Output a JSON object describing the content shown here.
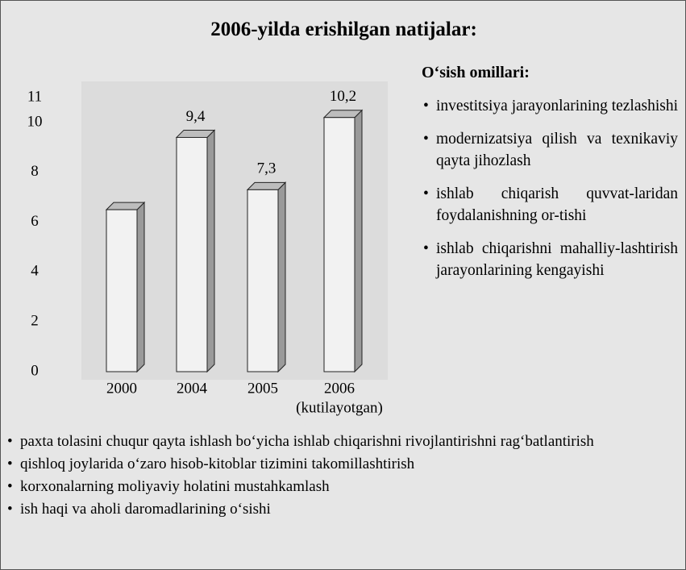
{
  "chart_data": {
    "type": "bar3d",
    "title": "2006-yilda erishilgan natijalar:",
    "categories": [
      "2000",
      "2004",
      "2005",
      "2006"
    ],
    "annotation": "(kutilayotgan)",
    "values": [
      6.5,
      9.4,
      7.3,
      10.2
    ],
    "value_labels": [
      null,
      "9,4",
      "7,3",
      "10,2"
    ],
    "color": "#f2f2f2",
    "ylim": [
      0,
      11
    ],
    "yticks": [
      0,
      2,
      4,
      6,
      8,
      10,
      11
    ],
    "grid": false
  },
  "factors": {
    "title": "O‘sish omillari:",
    "items": [
      "investitsiya jarayonlarining tezlashishi",
      "modernizatsiya qilish va texnikaviy qayta jihozlash",
      "ishlab chiqarish quvvat-laridan foydalanishning or-tishi",
      "ishlab chiqarishni mahalliy-lashtirish jarayonlarining kengayishi"
    ]
  },
  "measures": {
    "items": [
      "paxta tolasini chuqur qayta ishlash bo‘yicha ishlab chiqarishni rivojlantirishni rag‘batlantirish",
      "qishloq joylarida o‘zaro hisob-kitoblar tizimini takomillashtirish",
      "korxonalarning moliyaviy holatini mustahkamlash",
      "ish haqi va aholi daromadlarining o‘sishi"
    ]
  }
}
